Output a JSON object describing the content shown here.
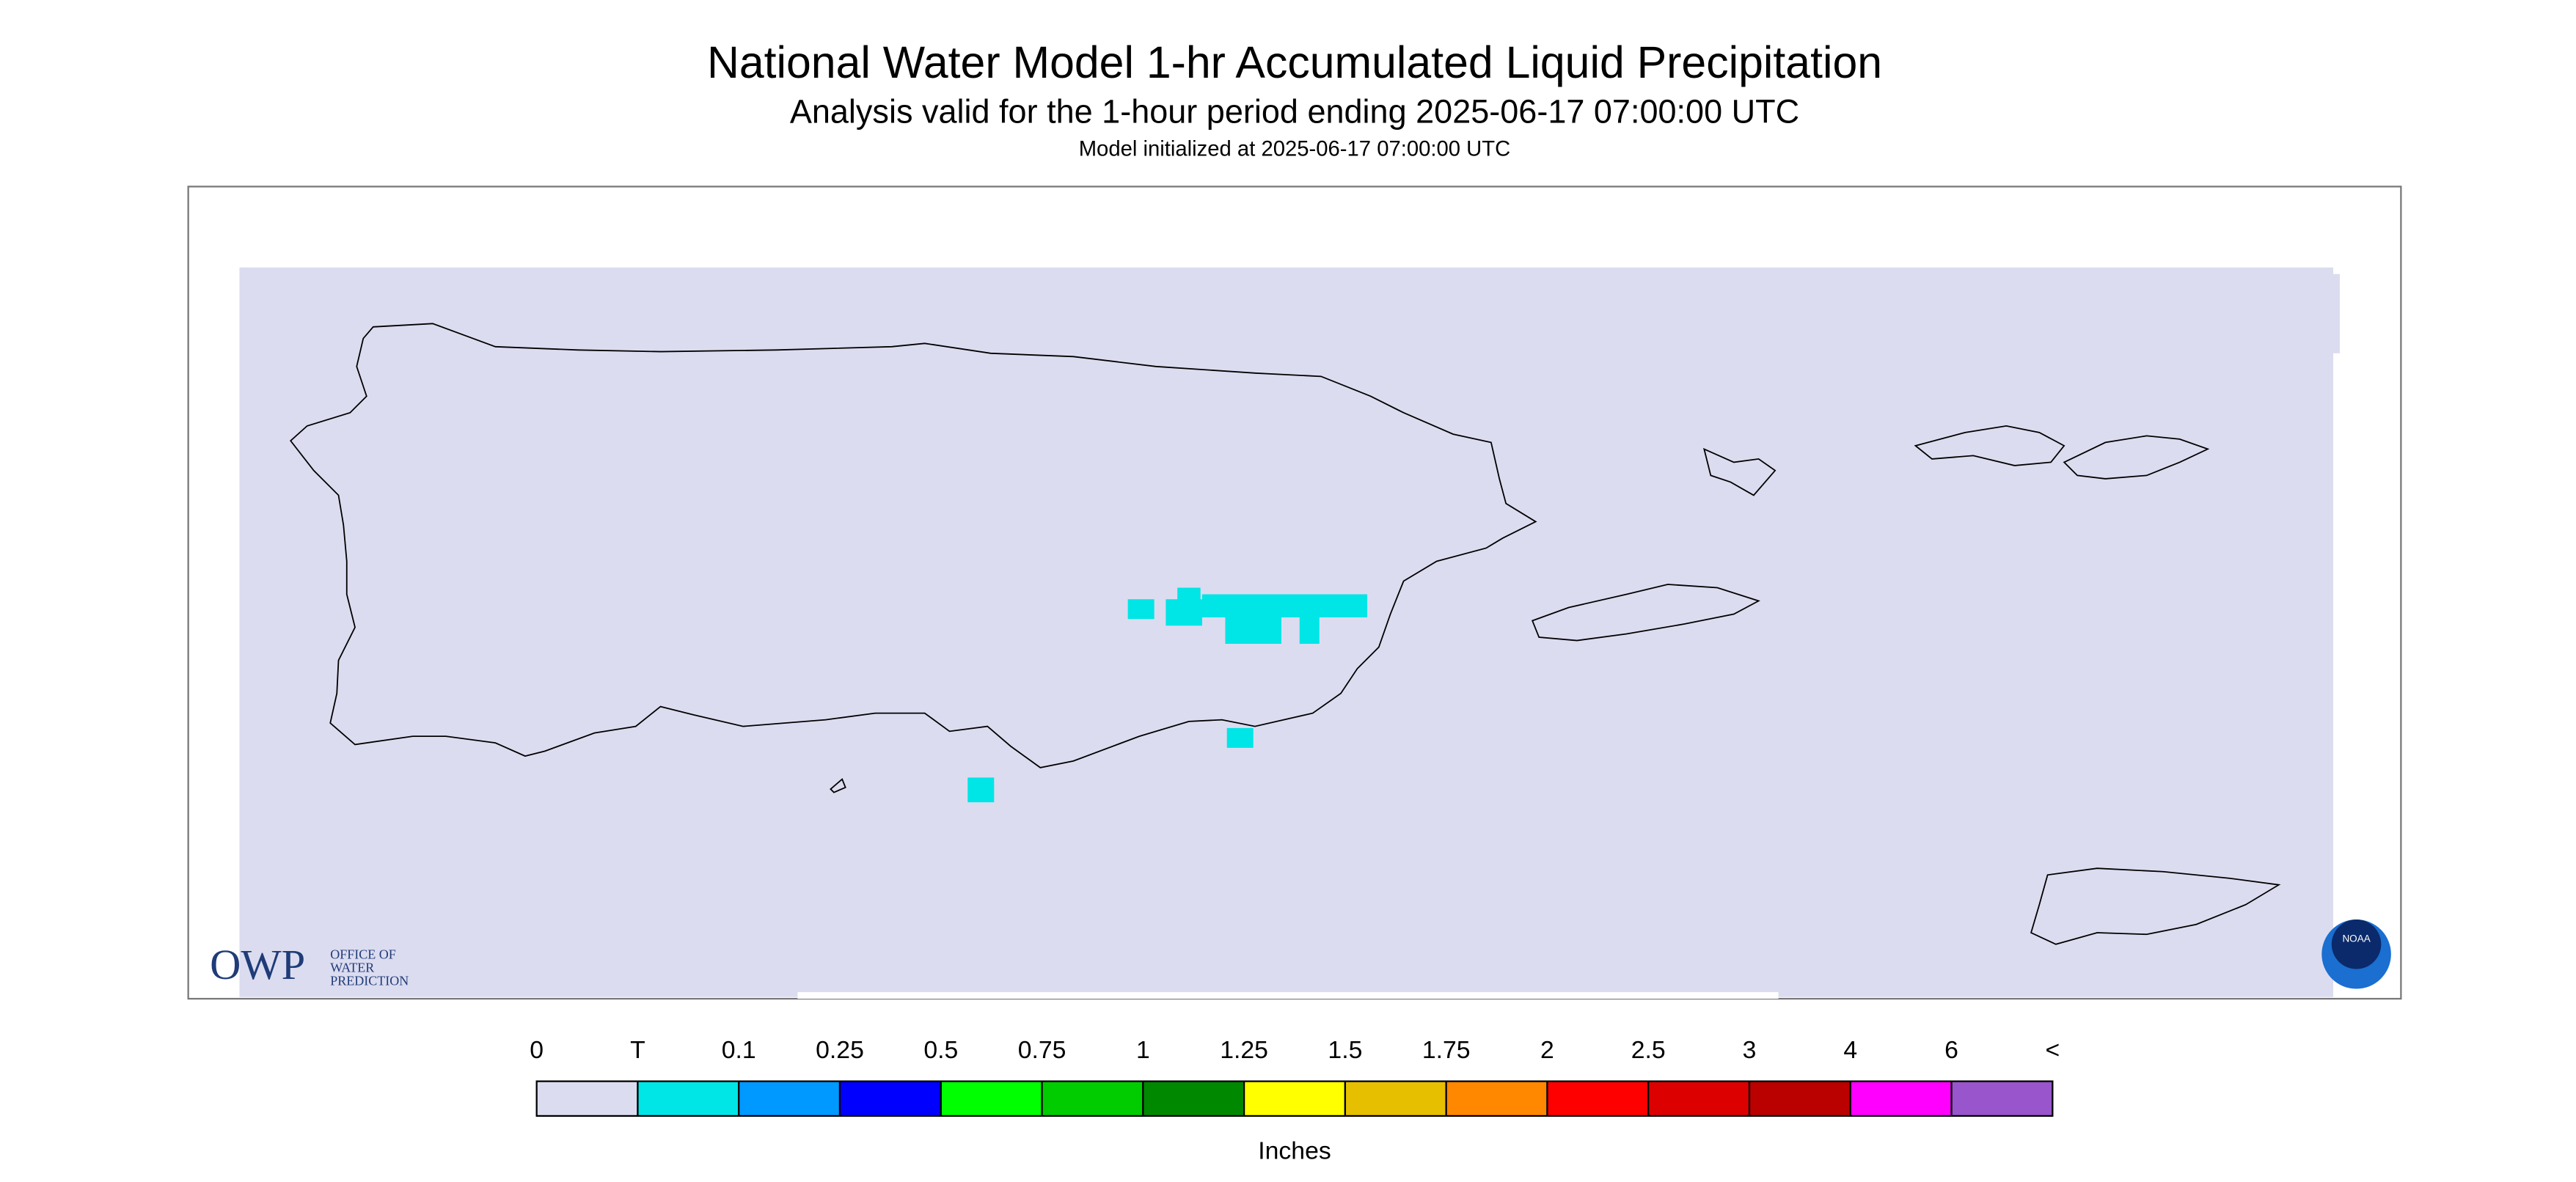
{
  "header": {
    "title": "National Water Model 1-hr Accumulated Liquid Precipitation",
    "subtitle": "Analysis valid for the 1-hour period ending 2025-06-17 07:00:00 UTC",
    "note": "Model initialized at 2025-06-17 07:00:00 UTC"
  },
  "logos": {
    "owp": "OWP",
    "owp_lines": [
      "OFFICE OF",
      "WATER",
      "PREDICTION"
    ],
    "noaa": "NOAA"
  },
  "legend": {
    "title": "Inches",
    "labels": [
      "0",
      "T",
      "0.1",
      "0.25",
      "0.5",
      "0.75",
      "1",
      "1.25",
      "1.5",
      "1.75",
      "2",
      "2.5",
      "3",
      "4",
      "6",
      "<"
    ],
    "colors": [
      "#dcdcf0",
      "#00e5e5",
      "#0099ff",
      "#0000ff",
      "#00ff00",
      "#00cc00",
      "#008800",
      "#ffff00",
      "#e6bf00",
      "#ff8800",
      "#ff0000",
      "#dd0000",
      "#bb0000",
      "#ff00ff",
      "#9955cc"
    ]
  }
}
